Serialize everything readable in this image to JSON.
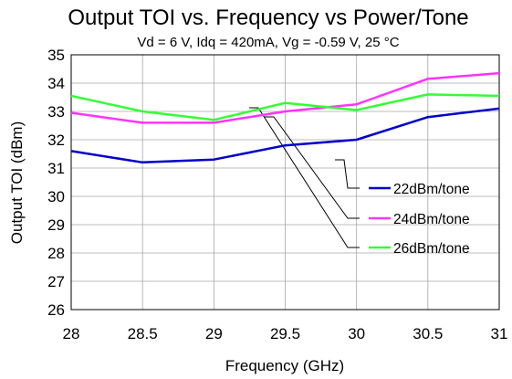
{
  "chart_data": {
    "type": "line",
    "title": "Output TOI vs. Frequency vs Power/Tone",
    "subtitle": "Vd = 6 V, Idq = 420mA, Vg = -0.59 V, 25 °C",
    "xlabel": "Frequency (GHz)",
    "ylabel": "Output TOI (dBm)",
    "xlim": [
      28,
      31
    ],
    "ylim": [
      26,
      35
    ],
    "x_ticks": [
      28,
      28.5,
      29,
      29.5,
      30,
      30.5,
      31
    ],
    "y_ticks": [
      26,
      27,
      28,
      29,
      30,
      31,
      32,
      33,
      34,
      35
    ],
    "grid": true,
    "legend_position": "right",
    "x": [
      28,
      28.5,
      29,
      29.5,
      30,
      30.5,
      31
    ],
    "series": [
      {
        "name": "22dBm/tone",
        "color": "#0000cc",
        "values": [
          31.6,
          31.2,
          31.3,
          31.8,
          32.0,
          32.8,
          33.1
        ]
      },
      {
        "name": "24dBm/tone",
        "color": "#ff33ff",
        "values": [
          32.95,
          32.6,
          32.6,
          33.0,
          33.25,
          34.15,
          34.35
        ]
      },
      {
        "name": "26dBm/tone",
        "color": "#33ff33",
        "values": [
          33.55,
          33.0,
          32.7,
          33.3,
          33.05,
          33.6,
          33.55
        ]
      }
    ]
  }
}
